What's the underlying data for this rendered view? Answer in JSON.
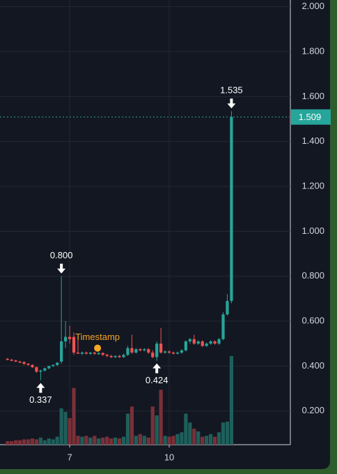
{
  "chart_data": {
    "type": "candlestick",
    "x": [
      5.125,
      5.25,
      5.375,
      5.5,
      5.625,
      5.75,
      5.875,
      6,
      6.125,
      6.25,
      6.375,
      6.5,
      6.625,
      6.75,
      6.875,
      7,
      7.125,
      7.25,
      7.375,
      7.5,
      7.625,
      7.75,
      7.875,
      8,
      8.125,
      8.25,
      8.375,
      8.5,
      8.625,
      8.75,
      8.875,
      9,
      9.125,
      9.25,
      9.375,
      9.5,
      9.625,
      9.75,
      9.875,
      10,
      10.125,
      10.25,
      10.375,
      10.5,
      10.625,
      10.75,
      10.875,
      11,
      11.125,
      11.25,
      11.375,
      11.5,
      11.625,
      11.75,
      11.875
    ],
    "open": [
      0.432,
      0.428,
      0.425,
      0.42,
      0.418,
      0.41,
      0.405,
      0.395,
      0.375,
      0.38,
      0.39,
      0.4,
      0.405,
      0.42,
      0.51,
      0.53,
      0.53,
      0.46,
      0.455,
      0.46,
      0.455,
      0.46,
      0.455,
      0.458,
      0.45,
      0.445,
      0.44,
      0.445,
      0.44,
      0.45,
      0.48,
      0.46,
      0.475,
      0.47,
      0.475,
      0.46,
      0.44,
      0.5,
      0.46,
      0.465,
      0.46,
      0.458,
      0.46,
      0.47,
      0.51,
      0.52,
      0.5,
      0.51,
      0.49,
      0.5,
      0.51,
      0.5,
      0.52,
      0.63,
      0.69
    ],
    "high": [
      0.436,
      0.432,
      0.428,
      0.424,
      0.421,
      0.414,
      0.408,
      0.398,
      0.384,
      0.393,
      0.402,
      0.408,
      0.418,
      0.8,
      0.6,
      0.58,
      0.55,
      0.535,
      0.465,
      0.465,
      0.463,
      0.464,
      0.462,
      0.462,
      0.455,
      0.45,
      0.448,
      0.45,
      0.455,
      0.49,
      0.54,
      0.48,
      0.48,
      0.48,
      0.48,
      0.47,
      0.51,
      0.57,
      0.47,
      0.47,
      0.465,
      0.465,
      0.475,
      0.515,
      0.525,
      0.54,
      0.515,
      0.515,
      0.505,
      0.515,
      0.515,
      0.525,
      0.64,
      0.72,
      1.535
    ],
    "low": [
      0.426,
      0.422,
      0.418,
      0.414,
      0.405,
      0.402,
      0.392,
      0.37,
      0.337,
      0.376,
      0.386,
      0.396,
      0.4,
      0.41,
      0.48,
      0.5,
      0.45,
      0.455,
      0.45,
      0.452,
      0.45,
      0.45,
      0.45,
      0.445,
      0.44,
      0.436,
      0.436,
      0.436,
      0.436,
      0.445,
      0.455,
      0.455,
      0.465,
      0.465,
      0.455,
      0.435,
      0.424,
      0.455,
      0.455,
      0.455,
      0.452,
      0.452,
      0.455,
      0.465,
      0.5,
      0.495,
      0.495,
      0.485,
      0.485,
      0.495,
      0.495,
      0.495,
      0.515,
      0.625,
      0.68
    ],
    "close": [
      0.428,
      0.425,
      0.42,
      0.418,
      0.41,
      0.405,
      0.395,
      0.375,
      0.38,
      0.39,
      0.4,
      0.405,
      0.415,
      0.51,
      0.53,
      0.52,
      0.46,
      0.455,
      0.46,
      0.455,
      0.46,
      0.455,
      0.458,
      0.45,
      0.445,
      0.44,
      0.445,
      0.44,
      0.45,
      0.48,
      0.46,
      0.475,
      0.47,
      0.475,
      0.46,
      0.44,
      0.5,
      0.46,
      0.465,
      0.46,
      0.458,
      0.46,
      0.47,
      0.51,
      0.52,
      0.5,
      0.51,
      0.49,
      0.5,
      0.51,
      0.5,
      0.52,
      0.63,
      0.69,
      1.509
    ],
    "volume": [
      4,
      4,
      5,
      5,
      6,
      6,
      7,
      6,
      8,
      5,
      7,
      6,
      9,
      41,
      37,
      30,
      64,
      10,
      9,
      10,
      8,
      10,
      7,
      8,
      9,
      7,
      8,
      7,
      9,
      35,
      43,
      10,
      12,
      10,
      8,
      43,
      33,
      62,
      10,
      9,
      10,
      12,
      14,
      35,
      25,
      18,
      15,
      9,
      10,
      12,
      9,
      14,
      25,
      26,
      100
    ],
    "vlim": [
      0,
      100
    ],
    "up_color": "#26a69a",
    "down_color": "#ef5350",
    "volume_up_color": "#1f5f5b",
    "volume_down_color": "#7b3038",
    "xlim": [
      4.9,
      13.65
    ],
    "xticks": [
      7,
      10
    ],
    "ylim": [
      0.05,
      2.03
    ],
    "yticks": [
      {
        "value": 0.2,
        "label": "0.200"
      },
      {
        "value": 0.4,
        "label": "0.400"
      },
      {
        "value": 0.6,
        "label": "0.600"
      },
      {
        "value": 0.8,
        "label": "0.800"
      },
      {
        "value": 1.0,
        "label": "1.000"
      },
      {
        "value": 1.2,
        "label": "1.200"
      },
      {
        "value": 1.4,
        "label": "1.400"
      },
      {
        "value": 1.6,
        "label": "1.600"
      },
      {
        "value": 1.8,
        "label": "1.800"
      },
      {
        "value": 2.0,
        "label": "2.000"
      }
    ],
    "grid": true,
    "price_line": {
      "value": 1.509,
      "label": "1.509",
      "color": "#26a69a"
    },
    "annotations": [
      {
        "value": 0.8,
        "label": "0.800",
        "x": 6.75,
        "side": "above"
      },
      {
        "value": 0.337,
        "label": "0.337",
        "x": 6.125,
        "side": "below"
      },
      {
        "value": 0.424,
        "label": "0.424",
        "x": 9.625,
        "side": "below"
      },
      {
        "value": 1.535,
        "label": "1.535",
        "x": 11.875,
        "side": "above"
      }
    ],
    "timestamp_marker": {
      "label": "Timestamp",
      "x": 7.84,
      "value": 0.48,
      "color": "#f5a623"
    }
  }
}
